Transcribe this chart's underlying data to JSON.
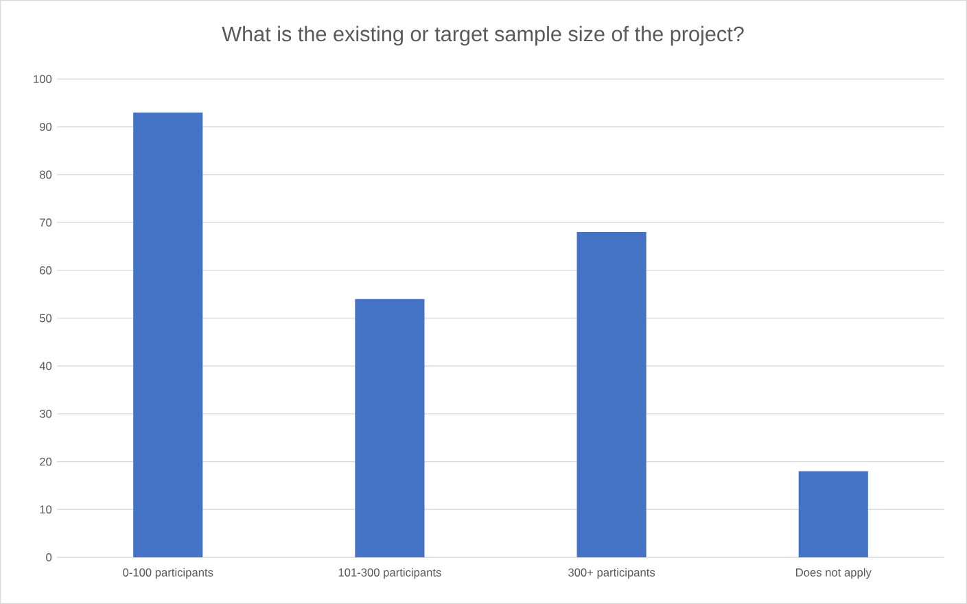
{
  "chart_data": {
    "type": "bar",
    "title": "What is the existing or target sample size of the project?",
    "categories": [
      "0-100 participants",
      "101-300 participants",
      "300+ participants",
      "Does not apply"
    ],
    "values": [
      93,
      54,
      68,
      18
    ],
    "color": "#4472c4",
    "ylim": [
      0,
      100
    ],
    "yticks": [
      0,
      10,
      20,
      30,
      40,
      50,
      60,
      70,
      80,
      90,
      100
    ],
    "grid": "y"
  }
}
